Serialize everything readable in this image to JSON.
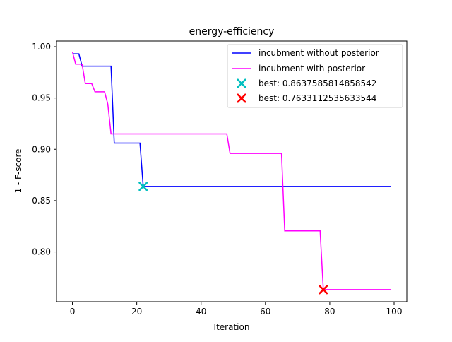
{
  "chart_data": {
    "type": "line",
    "title": "energy-efficiency",
    "xlabel": "Iteration",
    "ylabel": "1 - F-score",
    "xlim": [
      -4.95,
      103.95
    ],
    "ylim": [
      0.7515,
      1.0055
    ],
    "xticks": [
      0,
      20,
      40,
      60,
      80,
      100
    ],
    "xtick_labels": [
      "0",
      "20",
      "40",
      "60",
      "80",
      "100"
    ],
    "yticks": [
      0.8,
      0.85,
      0.9,
      0.95,
      1.0
    ],
    "ytick_labels": [
      "0.80",
      "0.85",
      "0.90",
      "0.95",
      "1.00"
    ],
    "grid": false,
    "legend_position": "top-right",
    "series": [
      {
        "name": "incubment without posterior",
        "color": "#0000ff",
        "style": "step",
        "points": [
          [
            0,
            0.993
          ],
          [
            2,
            0.993
          ],
          [
            3,
            0.981
          ],
          [
            12,
            0.981
          ],
          [
            13,
            0.906
          ],
          [
            21,
            0.906
          ],
          [
            22,
            0.8638
          ],
          [
            99,
            0.8638
          ]
        ]
      },
      {
        "name": "incubment with posterior",
        "color": "#ff00ff",
        "style": "step",
        "points": [
          [
            0,
            0.995
          ],
          [
            1,
            0.983
          ],
          [
            3,
            0.983
          ],
          [
            4,
            0.964
          ],
          [
            6,
            0.964
          ],
          [
            7,
            0.956
          ],
          [
            10,
            0.956
          ],
          [
            11,
            0.944
          ],
          [
            12,
            0.915
          ],
          [
            48,
            0.915
          ],
          [
            49,
            0.896
          ],
          [
            65,
            0.896
          ],
          [
            66,
            0.8205
          ],
          [
            77,
            0.8205
          ],
          [
            78,
            0.7633
          ],
          [
            99,
            0.7633
          ]
        ]
      }
    ],
    "markers": [
      {
        "name": "best: 0.8637585814858542",
        "x": 22,
        "y": 0.8637585814858542,
        "color": "#00bfbf",
        "symbol": "x"
      },
      {
        "name": "best: 0.7633112535633544",
        "x": 78,
        "y": 0.7633112535633544,
        "color": "#ff0000",
        "symbol": "x"
      }
    ]
  }
}
